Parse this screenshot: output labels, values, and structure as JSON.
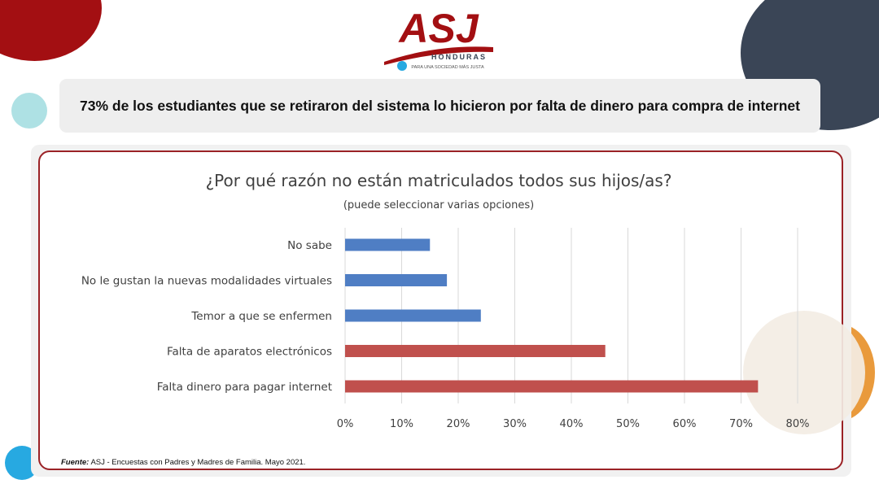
{
  "logo": {
    "name": "ASJ",
    "country": "HONDURAS",
    "tagline": "PARA UNA SOCIEDAD MÁS JUSTA"
  },
  "headline": "73% de los estudiantes que se retiraron del sistema lo hicieron por falta de dinero para compra de internet",
  "source": {
    "label": "Fuente:",
    "text": "ASJ - Encuestas con Padres y Madres de Familia. Mayo 2021."
  },
  "colors": {
    "blue_bar": "#4f7ec4",
    "red_bar": "#c0504d",
    "frame": "#9b2226",
    "brand_red": "#a30f12"
  },
  "chart_data": {
    "type": "bar",
    "orientation": "horizontal",
    "title": "¿Por qué razón no están matriculados todos sus hijos/as?",
    "subtitle": "(puede seleccionar varias opciones)",
    "categories": [
      "No sabe",
      "No le gustan la nuevas modalidades virtuales",
      "Temor a que se enfermen",
      "Falta de aparatos electrónicos",
      "Falta dinero para pagar internet"
    ],
    "values": [
      15,
      18,
      24,
      46,
      73
    ],
    "bar_colors": [
      "#4f7ec4",
      "#4f7ec4",
      "#4f7ec4",
      "#c0504d",
      "#c0504d"
    ],
    "xlim": [
      0,
      80
    ],
    "xticks": [
      0,
      10,
      20,
      30,
      40,
      50,
      60,
      70,
      80
    ],
    "tick_suffix": "%",
    "grid": true,
    "legend": "none"
  }
}
